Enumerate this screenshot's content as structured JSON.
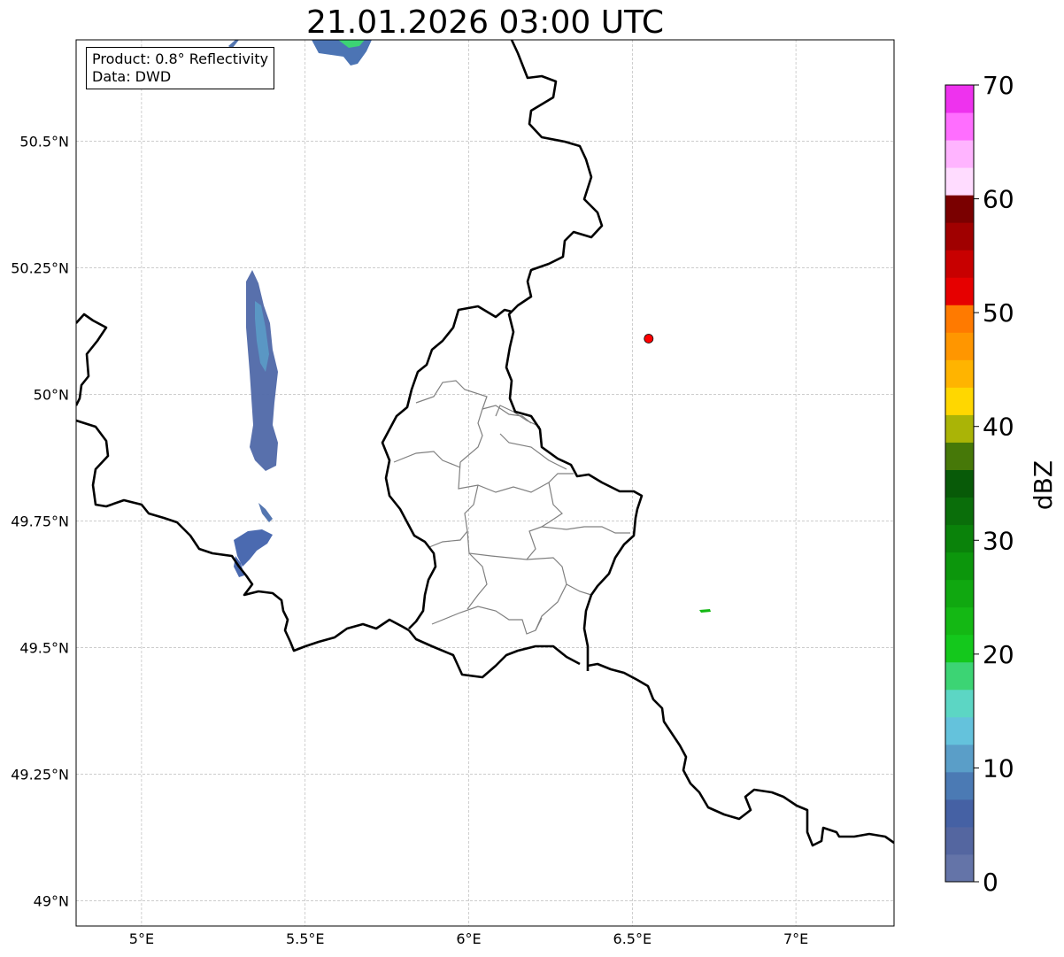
{
  "title": "21.01.2026 03:00 UTC",
  "info_box": {
    "product": "Product: 0.8° Reflectivity",
    "data": "Data: DWD"
  },
  "map": {
    "lon_range": [
      4.8,
      7.3
    ],
    "lat_range": [
      48.95,
      50.7
    ],
    "lon_ticks": [
      {
        "value": 5.0,
        "label": "5°E"
      },
      {
        "value": 5.5,
        "label": "5.5°E"
      },
      {
        "value": 6.0,
        "label": "6°E"
      },
      {
        "value": 6.5,
        "label": "6.5°E"
      },
      {
        "value": 7.0,
        "label": "7°E"
      }
    ],
    "lat_ticks": [
      {
        "value": 50.5,
        "label": "50.5°N"
      },
      {
        "value": 50.25,
        "label": "50.25°N"
      },
      {
        "value": 50.0,
        "label": "50°N"
      },
      {
        "value": 49.75,
        "label": "49.75°N"
      },
      {
        "value": 49.5,
        "label": "49.5°N"
      },
      {
        "value": 49.25,
        "label": "49.25°N"
      },
      {
        "value": 49.0,
        "label": "49°N"
      }
    ],
    "radar_site": {
      "lon": 6.55,
      "lat": 50.11,
      "color": "#ff0000"
    },
    "colors": {
      "border": "#000000",
      "district": "#808080",
      "grid": "#b0b0b0"
    }
  },
  "colorbar": {
    "label": "dBZ",
    "vmin": 0,
    "vmax": 70,
    "tick_values": [
      0,
      10,
      20,
      30,
      40,
      50,
      60,
      70
    ],
    "tick_labels": [
      "0",
      "10",
      "20",
      "30",
      "40",
      "50",
      "60",
      "70"
    ],
    "colors": [
      "#6474a8",
      "#5466a0",
      "#4561a4",
      "#4b7ab4",
      "#5a9ec8",
      "#64c2dc",
      "#5cd6c4",
      "#3cd474",
      "#14c81c",
      "#14b814",
      "#10a810",
      "#0c960c",
      "#0a820a",
      "#0a6e0a",
      "#085a08",
      "#467808",
      "#aab406",
      "#ffd700",
      "#ffb400",
      "#ff9600",
      "#ff7a00",
      "#e60000",
      "#c80000",
      "#a00000",
      "#7a0000",
      "#ffdcff",
      "#ffb4ff",
      "#ff6eff",
      "#ee32ee"
    ]
  }
}
